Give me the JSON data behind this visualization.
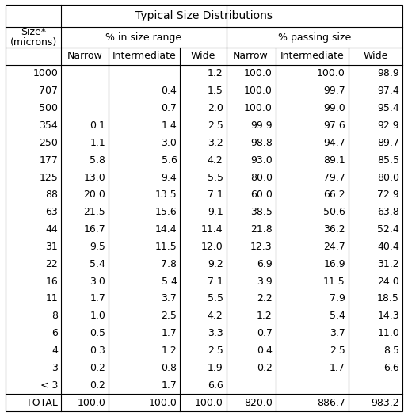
{
  "title": "Typical Size Distributions",
  "col1_header_line1": "Size*",
  "col1_header_line2": "(microns)",
  "group1_header": "% in size range",
  "group2_header": "% passing size",
  "sub_headers": [
    "Narrow",
    "Intermediate",
    "Wide",
    "Narrow",
    "Intermediate",
    "Wide"
  ],
  "rows": [
    [
      "1000",
      "",
      "",
      "1.2",
      "100.0",
      "100.0",
      "98.9"
    ],
    [
      "707",
      "",
      "0.4",
      "1.5",
      "100.0",
      "99.7",
      "97.4"
    ],
    [
      "500",
      "",
      "0.7",
      "2.0",
      "100.0",
      "99.0",
      "95.4"
    ],
    [
      "354",
      "0.1",
      "1.4",
      "2.5",
      "99.9",
      "97.6",
      "92.9"
    ],
    [
      "250",
      "1.1",
      "3.0",
      "3.2",
      "98.8",
      "94.7",
      "89.7"
    ],
    [
      "177",
      "5.8",
      "5.6",
      "4.2",
      "93.0",
      "89.1",
      "85.5"
    ],
    [
      "125",
      "13.0",
      "9.4",
      "5.5",
      "80.0",
      "79.7",
      "80.0"
    ],
    [
      "88",
      "20.0",
      "13.5",
      "7.1",
      "60.0",
      "66.2",
      "72.9"
    ],
    [
      "63",
      "21.5",
      "15.6",
      "9.1",
      "38.5",
      "50.6",
      "63.8"
    ],
    [
      "44",
      "16.7",
      "14.4",
      "11.4",
      "21.8",
      "36.2",
      "52.4"
    ],
    [
      "31",
      "9.5",
      "11.5",
      "12.0",
      "12.3",
      "24.7",
      "40.4"
    ],
    [
      "22",
      "5.4",
      "7.8",
      "9.2",
      "6.9",
      "16.9",
      "31.2"
    ],
    [
      "16",
      "3.0",
      "5.4",
      "7.1",
      "3.9",
      "11.5",
      "24.0"
    ],
    [
      "11",
      "1.7",
      "3.7",
      "5.5",
      "2.2",
      "7.9",
      "18.5"
    ],
    [
      "8",
      "1.0",
      "2.5",
      "4.2",
      "1.2",
      "5.4",
      "14.3"
    ],
    [
      "6",
      "0.5",
      "1.7",
      "3.3",
      "0.7",
      "3.7",
      "11.0"
    ],
    [
      "4",
      "0.3",
      "1.2",
      "2.5",
      "0.4",
      "2.5",
      "8.5"
    ],
    [
      "3",
      "0.2",
      "0.8",
      "1.9",
      "0.2",
      "1.7",
      "6.6"
    ],
    [
      "< 3",
      "0.2",
      "1.7",
      "6.6",
      "",
      "",
      ""
    ],
    [
      "TOTAL",
      "100.0",
      "100.0",
      "100.0",
      "820.0",
      "886.7",
      "983.2"
    ]
  ],
  "figsize": [
    5.15,
    5.25
  ],
  "dpi": 100,
  "fontsize": 9,
  "title_fontsize": 10
}
